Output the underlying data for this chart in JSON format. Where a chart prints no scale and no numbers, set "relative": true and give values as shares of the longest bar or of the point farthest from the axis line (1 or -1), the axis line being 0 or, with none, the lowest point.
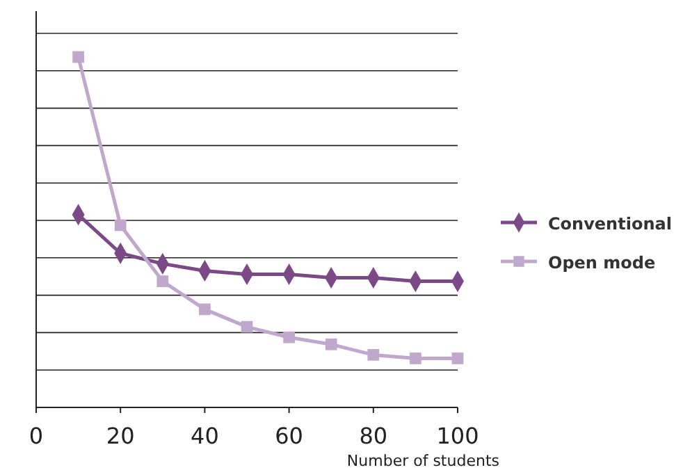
{
  "chart_data": {
    "type": "line",
    "relative": true,
    "xlabel": "Number of students",
    "x": [
      10,
      20,
      30,
      40,
      50,
      60,
      70,
      80,
      90,
      100
    ],
    "xlim": [
      0,
      100
    ],
    "xticks": [
      0,
      20,
      40,
      60,
      80,
      100
    ],
    "grid": "y",
    "legend": "right",
    "series": [
      {
        "name": "Conventional",
        "color": "#7b4a86",
        "marker": "diamond",
        "values": [
          0.55,
          0.44,
          0.41,
          0.39,
          0.38,
          0.38,
          0.37,
          0.37,
          0.36,
          0.36
        ]
      },
      {
        "name": "Open mode",
        "color": "#c0a8cc",
        "marker": "square",
        "values": [
          1,
          0.52,
          0.36,
          0.28,
          0.23,
          0.2,
          0.18,
          0.15,
          0.14,
          0.14
        ]
      }
    ]
  }
}
